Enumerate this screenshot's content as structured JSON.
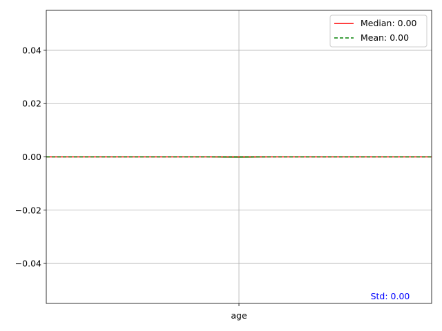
{
  "chart_data": {
    "type": "violin",
    "categories": [
      "age"
    ],
    "ylim": [
      -0.055,
      0.055
    ],
    "yticks": [
      -0.04,
      -0.02,
      0.0,
      0.02,
      0.04
    ],
    "ytick_labels": [
      "−0.04",
      "−0.02",
      "0.00",
      "0.02",
      "0.04"
    ],
    "grid": true,
    "median": 0.0,
    "mean": 0.0,
    "std": 0.0,
    "legend": {
      "placement": "top-right",
      "entries": [
        {
          "label": "Median: 0.00",
          "color": "#ff0000",
          "style": "solid"
        },
        {
          "label": "Mean: 0.00",
          "color": "#008000",
          "style": "dashed"
        }
      ]
    },
    "annotation": {
      "text": "Std: 0.00",
      "color": "#0000ff"
    },
    "violin_color": "#2ca02c"
  }
}
